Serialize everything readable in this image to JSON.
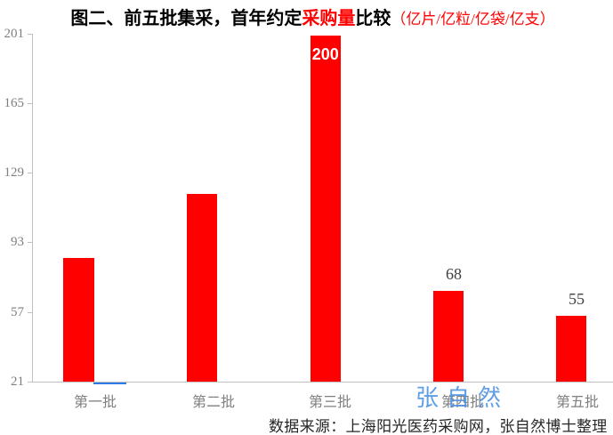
{
  "title": {
    "prefix": "图二、前五批集采，首年约定",
    "highlight": "采购量",
    "suffix": "比较",
    "unit_note": "（亿片/亿粒/亿袋/亿支）"
  },
  "source": "数据来源：上海阳光医药采购网，张自然博士整理",
  "watermark": "张自然",
  "colors": {
    "bar": "#FF0000",
    "title_highlight": "#FF0000",
    "unit_note": "#FF0000",
    "axis": "#BFBFBF",
    "tick_label": "#7F7F7F",
    "value_label": "#404040",
    "inside_label": "#FFFFFF",
    "watermark": "#4A90E2",
    "blue_marker": "#2E7AE6",
    "source_text": "#262626"
  },
  "chart_data": {
    "type": "bar",
    "title": "图二、前五批集采，首年约定采购量比较（亿片/亿粒/亿袋/亿支）",
    "categories": [
      "第一批",
      "第二批",
      "第三批",
      "第四批",
      "第五批"
    ],
    "values": [
      85,
      118,
      200,
      68,
      55
    ],
    "data_labels": [
      "",
      "",
      "200",
      "68",
      "55"
    ],
    "label_inside": [
      false,
      false,
      true,
      false,
      false
    ],
    "xlabel": "",
    "ylabel": "",
    "ylim": [
      21,
      201
    ],
    "yticks": [
      201,
      165,
      129,
      93,
      57,
      21
    ],
    "grid": false,
    "legend": "none",
    "bar_color": "#FF0000",
    "secondary_marker": {
      "category": "第一批",
      "color": "#2E7AE6",
      "note": "tiny blue bar sliver at baseline right of first red bar",
      "approx_value": 21
    }
  }
}
